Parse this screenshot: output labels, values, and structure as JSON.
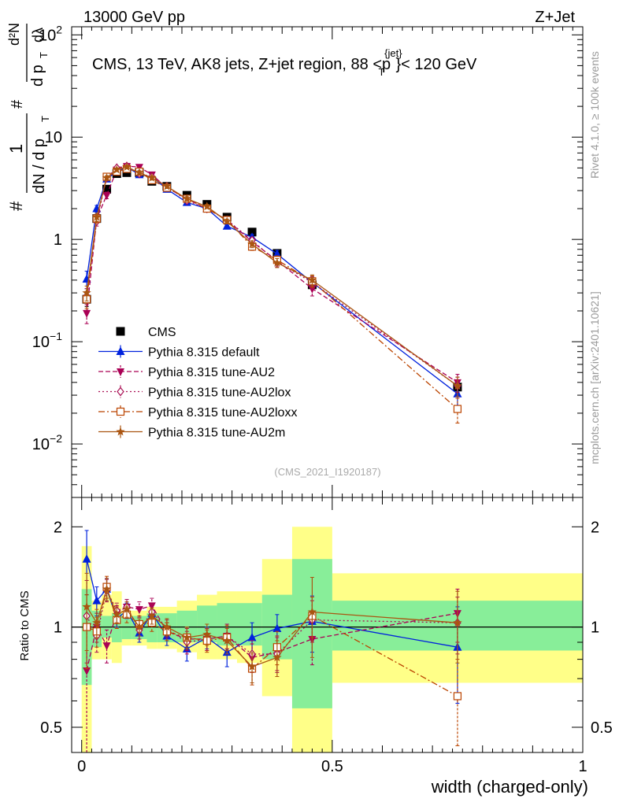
{
  "header": {
    "left_label": "13000 GeV pp",
    "right_label": "Z+Jet"
  },
  "side_labels": {
    "rivet": "Rivet 4.1.0, ≥ 100k events",
    "mcplots": "mcplots.cern.ch [arXiv:2401.10621]"
  },
  "chart_data": [
    {
      "type": "line",
      "panel": "main",
      "title": "CMS, 13 TeV, AK8 jets, Z+jet region, 88 <p_T^{jet}< 120 GeV",
      "title_parts": [
        "CMS, 13 TeV, AK8 jets, Z+jet region, 88 <p",
        "{jet}",
        "T",
        "}< 120 GeV"
      ],
      "analysis_label": "(CMS_2021_I1920187)",
      "xlabel": "width (charged-only)",
      "ylabel_parts": [
        "#",
        "1",
        "dN / d p",
        "T",
        "#",
        "d p",
        "T",
        "d²N",
        "dλ"
      ],
      "yscale": "log",
      "xlim": [
        -0.02,
        1.0
      ],
      "ylim": [
        0.003,
        120
      ],
      "x_ticks": [
        0,
        0.5,
        1
      ],
      "x_tick_labels": [
        "0",
        "0.5",
        "1"
      ],
      "y_tick_labels": [
        {
          "value": 100,
          "base": "10",
          "exp": "2"
        },
        {
          "value": 10,
          "base": "10",
          "exp": ""
        },
        {
          "value": 1,
          "base": "1",
          "exp": ""
        },
        {
          "value": 0.1,
          "base": "10",
          "exp": "−1"
        },
        {
          "value": 0.01,
          "base": "10",
          "exp": "−2"
        }
      ],
      "legend_position": "middle-left",
      "x": [
        0.01,
        0.03,
        0.05,
        0.07,
        0.09,
        0.115,
        0.14,
        0.17,
        0.21,
        0.25,
        0.29,
        0.34,
        0.39,
        0.46,
        0.75
      ],
      "series": [
        {
          "name": "CMS",
          "color": "#000000",
          "marker": "square",
          "line": "none",
          "values": [
            0.26,
            1.6,
            3.1,
            4.4,
            4.5,
            4.5,
            3.7,
            3.3,
            2.7,
            2.2,
            1.65,
            1.18,
            0.73,
            0.36,
            0.036
          ],
          "errors": [
            0.04,
            0.15,
            0.2,
            0.2,
            0.2,
            0.2,
            0.15,
            0.12,
            0.1,
            0.08,
            0.06,
            0.05,
            0.04,
            0.03,
            0.004
          ]
        },
        {
          "name": "Pythia 8.315 default",
          "color": "#0022dd",
          "marker": "triangle-up",
          "line": "solid",
          "values": [
            0.41,
            2.0,
            3.9,
            4.6,
            5.1,
            4.3,
            4.1,
            3.1,
            2.3,
            2.0,
            1.35,
            1.05,
            0.72,
            0.38,
            0.031
          ],
          "errors": [
            0.08,
            0.15,
            0.2,
            0.2,
            0.2,
            0.2,
            0.2,
            0.15,
            0.12,
            0.1,
            0.08,
            0.07,
            0.06,
            0.05,
            0.008
          ]
        },
        {
          "name": "Pythia 8.315 tune-AU2",
          "color": "#aa0055",
          "marker": "triangle-down",
          "line": "dashed",
          "values": [
            0.19,
            1.6,
            2.7,
            4.8,
            5.2,
            5.1,
            4.3,
            3.2,
            2.5,
            2.0,
            1.55,
            0.95,
            0.62,
            0.33,
            0.04
          ],
          "errors": [
            0.04,
            0.15,
            0.2,
            0.2,
            0.2,
            0.2,
            0.2,
            0.15,
            0.12,
            0.1,
            0.08,
            0.07,
            0.06,
            0.05,
            0.008
          ]
        },
        {
          "name": "Pythia 8.315 tune-AU2lox",
          "color": "#aa1155",
          "marker": "diamond-open",
          "line": "dotted",
          "values": [
            0.28,
            1.5,
            4.0,
            5.0,
            5.2,
            4.4,
            4.1,
            3.3,
            2.4,
            2.0,
            1.55,
            0.98,
            0.6,
            0.38,
            0.037
          ],
          "errors": [
            0.05,
            0.15,
            0.2,
            0.2,
            0.2,
            0.2,
            0.2,
            0.15,
            0.12,
            0.1,
            0.08,
            0.07,
            0.06,
            0.05,
            0.008
          ]
        },
        {
          "name": "Pythia 8.315 tune-AU2loxx",
          "color": "#bb4400",
          "marker": "square-open",
          "line": "dashdot",
          "values": [
            0.26,
            1.6,
            4.1,
            4.6,
            4.9,
            4.6,
            3.8,
            3.2,
            2.5,
            2.0,
            1.55,
            0.85,
            0.63,
            0.39,
            0.022
          ],
          "errors": [
            0.05,
            0.15,
            0.2,
            0.2,
            0.2,
            0.2,
            0.2,
            0.15,
            0.12,
            0.1,
            0.08,
            0.07,
            0.06,
            0.05,
            0.006
          ]
        },
        {
          "name": "Pythia 8.315 tune-AU2m",
          "color": "#aa5511",
          "marker": "star",
          "line": "solid",
          "values": [
            0.3,
            1.65,
            4.0,
            4.8,
            5.1,
            4.5,
            4.0,
            3.3,
            2.5,
            2.1,
            1.5,
            0.9,
            0.59,
            0.4,
            0.037
          ],
          "errors": [
            0.05,
            0.15,
            0.2,
            0.2,
            0.2,
            0.2,
            0.2,
            0.15,
            0.12,
            0.1,
            0.08,
            0.07,
            0.06,
            0.05,
            0.008
          ]
        }
      ]
    },
    {
      "type": "line",
      "panel": "ratio",
      "ylabel": "Ratio to CMS",
      "xlabel": "width (charged-only)",
      "yscale": "log",
      "xlim": [
        -0.02,
        1.0
      ],
      "ylim": [
        0.42,
        2.45
      ],
      "y_ticks": [
        0.5,
        1,
        2
      ],
      "y_tick_labels": [
        "0.5",
        "1",
        "2"
      ],
      "x_ticks": [
        0,
        0.5,
        1
      ],
      "x_tick_labels": [
        "0",
        "0.5",
        "1"
      ],
      "bands": {
        "edges": [
          0,
          0.02,
          0.04,
          0.06,
          0.08,
          0.1,
          0.13,
          0.15,
          0.19,
          0.23,
          0.27,
          0.31,
          0.36,
          0.42,
          0.5,
          1.0
        ],
        "inner_low": [
          0.67,
          0.87,
          0.93,
          0.9,
          0.92,
          0.92,
          0.9,
          0.9,
          0.9,
          0.9,
          0.88,
          0.88,
          0.8,
          0.57,
          0.85
        ],
        "inner_high": [
          1.3,
          1.12,
          1.08,
          1.1,
          1.08,
          1.08,
          1.1,
          1.1,
          1.12,
          1.16,
          1.18,
          1.18,
          1.25,
          1.6,
          1.2
        ],
        "outer_low": [
          0.3,
          0.8,
          0.8,
          0.78,
          0.88,
          0.88,
          0.86,
          0.86,
          0.84,
          0.8,
          0.8,
          0.78,
          0.62,
          0.3,
          0.68
        ],
        "outer_high": [
          1.75,
          1.2,
          1.25,
          1.28,
          1.12,
          1.12,
          1.15,
          1.15,
          1.2,
          1.25,
          1.28,
          1.28,
          1.6,
          2.0,
          1.45
        ]
      },
      "x": [
        0.01,
        0.03,
        0.05,
        0.07,
        0.09,
        0.115,
        0.14,
        0.17,
        0.21,
        0.25,
        0.29,
        0.34,
        0.39,
        0.46,
        0.75
      ],
      "series": [
        {
          "name": "Pythia 8.315 default",
          "color": "#0022dd",
          "marker": "triangle-up",
          "line": "solid",
          "values": [
            1.6,
            1.2,
            1.3,
            1.06,
            1.12,
            0.96,
            1.1,
            0.94,
            0.86,
            0.93,
            0.84,
            0.93,
            0.99,
            1.04,
            0.87
          ],
          "errors": [
            0.35,
            0.12,
            0.1,
            0.06,
            0.06,
            0.06,
            0.06,
            0.06,
            0.07,
            0.07,
            0.08,
            0.1,
            0.1,
            0.2,
            0.28
          ]
        },
        {
          "name": "Pythia 8.315 tune-AU2",
          "color": "#aa0055",
          "marker": "triangle-down",
          "line": "dashed",
          "values": [
            0.74,
            1.0,
            0.88,
            1.1,
            1.15,
            1.13,
            1.16,
            0.97,
            0.92,
            0.92,
            0.94,
            0.81,
            0.84,
            0.92,
            1.1
          ],
          "errors": [
            0.33,
            0.1,
            0.1,
            0.06,
            0.06,
            0.06,
            0.06,
            0.06,
            0.07,
            0.07,
            0.08,
            0.08,
            0.1,
            0.15,
            0.2
          ]
        },
        {
          "name": "Pythia 8.315 tune-AU2lox",
          "color": "#aa1155",
          "marker": "diamond-open",
          "line": "dotted",
          "values": [
            1.08,
            0.94,
            1.29,
            1.12,
            1.15,
            0.98,
            1.11,
            0.99,
            0.9,
            0.92,
            0.94,
            0.83,
            0.83,
            1.05,
            1.03
          ],
          "errors": [
            0.3,
            0.1,
            0.1,
            0.06,
            0.06,
            0.06,
            0.06,
            0.06,
            0.07,
            0.07,
            0.08,
            0.08,
            0.1,
            0.15,
            0.2
          ]
        },
        {
          "name": "Pythia 8.315 tune-AU2loxx",
          "color": "#bb4400",
          "marker": "square-open",
          "line": "dashdot",
          "values": [
            1.0,
            0.97,
            1.32,
            1.05,
            1.09,
            1.02,
            1.03,
            0.97,
            0.93,
            0.91,
            0.93,
            0.75,
            0.87,
            1.08,
            0.62
          ],
          "errors": [
            0.25,
            0.1,
            0.1,
            0.06,
            0.06,
            0.06,
            0.06,
            0.06,
            0.07,
            0.07,
            0.08,
            0.08,
            0.1,
            0.15,
            0.18
          ]
        },
        {
          "name": "Pythia 8.315 tune-AU2m",
          "color": "#aa5511",
          "marker": "star",
          "line": "solid",
          "values": [
            1.15,
            1.03,
            1.3,
            1.09,
            1.13,
            1.0,
            1.08,
            1.0,
            0.93,
            0.95,
            0.91,
            0.76,
            0.81,
            1.11,
            1.03
          ],
          "errors": [
            0.3,
            0.1,
            0.1,
            0.06,
            0.06,
            0.06,
            0.06,
            0.06,
            0.07,
            0.07,
            0.08,
            0.08,
            0.1,
            0.3,
            0.25
          ]
        }
      ]
    }
  ]
}
